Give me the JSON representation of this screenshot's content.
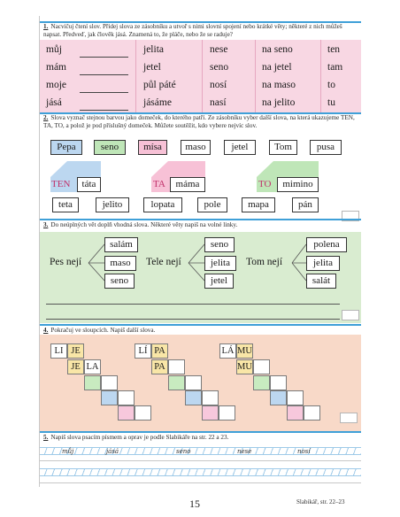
{
  "ex1": {
    "num": "1.",
    "instruction": "Nacvičuj čtení slov. Přidej slova ze zásobníku a utvoř s nimi slovní spojení nebo krátké věty; některé z nich můžeš napsat. Předveď, jak člověk jásá. Znamená to, že pláče, nebo že se raduje?",
    "col1": [
      "můj",
      "mám",
      "moje",
      "jásá"
    ],
    "col2": [
      "jelita",
      "jetel",
      "půl páté",
      "jásáme"
    ],
    "col3": [
      "nese",
      "seno",
      "nosí",
      "nasí"
    ],
    "col4": [
      "na seno",
      "na jetel",
      "na maso",
      "na jelito"
    ],
    "col5": [
      "ten",
      "tam",
      "to",
      "tu"
    ]
  },
  "ex2": {
    "num": "2.",
    "instruction": "Slova vyznač stejnou barvou jako domeček, do kterého patří. Ze zásobníku vyber další slova, na která ukazujeme TEN, TA, TO, a polož je pod příslušný domeček. Můžete soutěžit, kdo vybere nejvíc slov.",
    "row1": [
      "Pepa",
      "seno",
      "mísa",
      "maso",
      "jetel",
      "Tom",
      "pusa"
    ],
    "houses": [
      {
        "tag": "TEN",
        "word": "táta",
        "color": "#bcd7f0"
      },
      {
        "tag": "TA",
        "word": "máma",
        "color": "#f7c1d6"
      },
      {
        "tag": "TO",
        "word": "mimino",
        "color": "#bfe6b8"
      }
    ],
    "row2": [
      "teta",
      "jelito",
      "lopata",
      "pole",
      "mapa",
      "pán"
    ]
  },
  "ex3": {
    "num": "3.",
    "instruction": "Do neúplných vět doplň vhodná slova. Některé věty napiš na volné linky.",
    "groups": [
      {
        "lead": "Pes nejí",
        "options": [
          "salám",
          "maso",
          "seno"
        ]
      },
      {
        "lead": "Tele nejí",
        "options": [
          "seno",
          "jelita",
          "jetel"
        ]
      },
      {
        "lead": "Tom nejí",
        "options": [
          "polena",
          "jelita",
          "salát"
        ]
      }
    ]
  },
  "ex4": {
    "num": "4.",
    "instruction": "Pokračuj ve sloupcích. Napiš další slova.",
    "groups": [
      {
        "top": [
          "LI",
          "JE"
        ],
        "bottom": [
          "JE",
          "LA"
        ]
      },
      {
        "top": [
          "LÍ",
          "PA"
        ],
        "bottom": [
          "PA"
        ]
      },
      {
        "top": [
          "LÁ",
          "MU"
        ],
        "bottom": [
          "MU"
        ]
      }
    ]
  },
  "ex5": {
    "num": "5.",
    "instruction": "Napiš slova psacím písmem a oprav je podle Slabikáře na str. 22 a 23.",
    "words": [
      "můj",
      "jásá",
      "seno",
      "nese",
      "nosí"
    ]
  },
  "footer": {
    "page": "15",
    "ref": "Slabikář, str. 22–23"
  },
  "colors": {
    "pink": "#f8d7e3",
    "green": "#d9ecd0",
    "peach": "#f8d9c8",
    "blue_accent": "#3fa0d8"
  }
}
